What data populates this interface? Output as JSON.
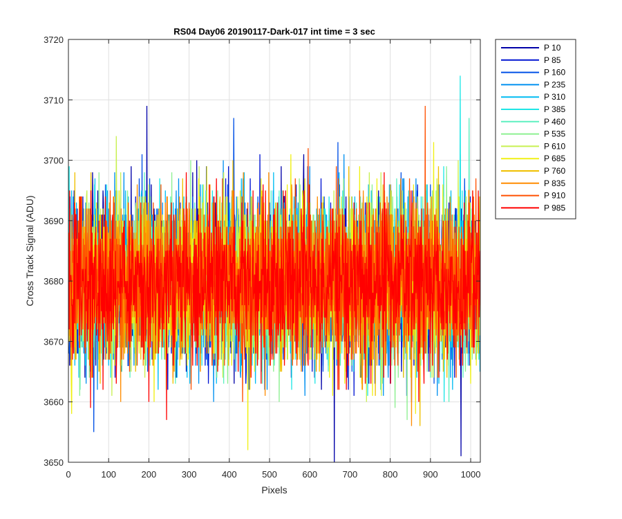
{
  "chart_data": {
    "type": "line",
    "title": "RS04 Day06 20190117-Dark-017 int time = 3 sec",
    "xlabel": "Pixels",
    "ylabel": "Cross Track Signal (ADU)",
    "xlim": [
      0,
      1024
    ],
    "ylim": [
      3650,
      3720
    ],
    "xticks": [
      "0",
      "100",
      "200",
      "300",
      "400",
      "500",
      "600",
      "700",
      "800",
      "900",
      "1000"
    ],
    "yticks": [
      "3650",
      "3660",
      "3670",
      "3680",
      "3690",
      "3700",
      "3710",
      "3720"
    ],
    "grid": true,
    "legend_position": "outside-top-right",
    "noise": {
      "mean": 3680,
      "std": 6.5,
      "points_per_series": 1024
    },
    "series": [
      {
        "name": "P 10",
        "color": "#0000a8"
      },
      {
        "name": "P 85",
        "color": "#0014d2"
      },
      {
        "name": "P 160",
        "color": "#0050e6"
      },
      {
        "name": "P 235",
        "color": "#0090f0"
      },
      {
        "name": "P 310",
        "color": "#00bcf2"
      },
      {
        "name": "P 385",
        "color": "#1ee6e6"
      },
      {
        "name": "P 460",
        "color": "#5cf0c0"
      },
      {
        "name": "P 535",
        "color": "#8cf090"
      },
      {
        "name": "P 610",
        "color": "#c8f050"
      },
      {
        "name": "P 685",
        "color": "#f0f014"
      },
      {
        "name": "P 760",
        "color": "#f0c000"
      },
      {
        "name": "P 835",
        "color": "#ff8c00"
      },
      {
        "name": "P 910",
        "color": "#ff5000"
      },
      {
        "name": "P 985",
        "color": "#ff0000"
      }
    ],
    "annotated_extremes": [
      {
        "series": "P 385",
        "x": 973,
        "y": 3714
      },
      {
        "series": "P 10",
        "x": 194,
        "y": 3709
      },
      {
        "series": "P 910",
        "x": 886,
        "y": 3709
      },
      {
        "series": "P 460",
        "x": 995,
        "y": 3707
      },
      {
        "series": "P 160",
        "x": 410,
        "y": 3707
      },
      {
        "series": "P 10",
        "x": 660,
        "y": 3650
      },
      {
        "series": "P 10",
        "x": 975,
        "y": 3651
      },
      {
        "series": "P 685",
        "x": 445,
        "y": 3652
      },
      {
        "series": "P 160",
        "x": 62,
        "y": 3655
      },
      {
        "series": "P 985",
        "x": 243,
        "y": 3657
      }
    ]
  }
}
